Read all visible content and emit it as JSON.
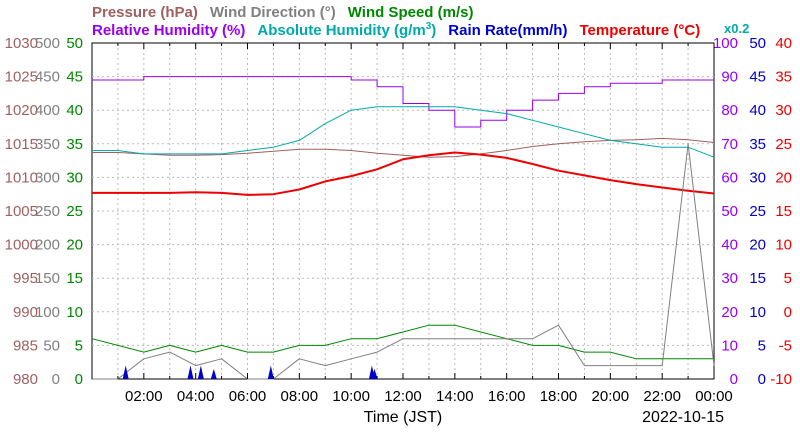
{
  "chart_data": {
    "type": "line",
    "date_label": "2022-10-15",
    "xlabel": "Time (JST)",
    "x_ticks": [
      "02:00",
      "04:00",
      "06:00",
      "08:00",
      "10:00",
      "12:00",
      "14:00",
      "16:00",
      "18:00",
      "20:00",
      "22:00",
      "00:00"
    ],
    "xlim": [
      "00:00",
      "24:00"
    ],
    "x_hours": [
      0,
      1,
      2,
      3,
      4,
      5,
      6,
      7,
      8,
      9,
      10,
      11,
      12,
      13,
      14,
      15,
      16,
      17,
      18,
      19,
      20,
      21,
      22,
      23,
      24
    ],
    "legend_row1": [
      {
        "name": "Pressure (hPa)",
        "color": "#a06060"
      },
      {
        "name": "Wind Direction (°)",
        "color": "#808080"
      },
      {
        "name": "Wind Speed (m/s)",
        "color": "#008800"
      }
    ],
    "legend_row2": [
      {
        "name": "Relative Humidity (%)",
        "color": "#9900ee"
      },
      {
        "name": "Absolute Humidity (g/m",
        "sup": "3",
        "after": ")",
        "color": "#00aaaa"
      },
      {
        "name": "Rain Rate(mm/h)",
        "color": "#0000cc"
      },
      {
        "name": "Temperature (°C)",
        "color": "#ee0000"
      }
    ],
    "scale_note": "x0.2",
    "axes": {
      "pressure": {
        "color": "#a06060",
        "min": 980,
        "max": 1030,
        "ticks": [
          "980",
          "985",
          "990",
          "995",
          "1000",
          "1005",
          "1010",
          "1015",
          "1020",
          "1025",
          "1030"
        ]
      },
      "wind_direction": {
        "color": "#808080",
        "min": 0,
        "max": 500,
        "ticks": [
          "0",
          "50",
          "100",
          "150",
          "200",
          "250",
          "300",
          "350",
          "400",
          "450",
          "500"
        ]
      },
      "wind_speed": {
        "color": "#008800",
        "min": 0,
        "max": 50,
        "ticks": [
          "0",
          "5",
          "10",
          "15",
          "20",
          "25",
          "30",
          "35",
          "40",
          "45",
          "50"
        ]
      },
      "humidity": {
        "color": "#9900ee",
        "min": 0,
        "max": 100,
        "ticks": [
          "0",
          "10",
          "20",
          "30",
          "40",
          "50",
          "60",
          "70",
          "80",
          "90",
          "100"
        ]
      },
      "rain_rate": {
        "color": "#0000cc",
        "min": 0,
        "max": 50,
        "ticks": [
          "0",
          "5",
          "10",
          "15",
          "20",
          "25",
          "30",
          "35",
          "40",
          "45",
          "50"
        ]
      },
      "temperature": {
        "color": "#ee0000",
        "min": -10,
        "max": 40,
        "ticks": [
          "-10",
          "-5",
          "0",
          "5",
          "10",
          "15",
          "20",
          "25",
          "30",
          "35",
          "40"
        ]
      }
    },
    "series": [
      {
        "name": "Pressure (hPa)",
        "axis": "pressure",
        "color": "#a06060",
        "values": [
          1013.7,
          1013.7,
          1013.5,
          1013.3,
          1013.3,
          1013.4,
          1013.6,
          1013.9,
          1014.2,
          1014.2,
          1014.0,
          1013.6,
          1013.3,
          1013.0,
          1013.1,
          1013.5,
          1014.0,
          1014.6,
          1015.0,
          1015.3,
          1015.5,
          1015.6,
          1015.8,
          1015.6,
          1015.2
        ]
      },
      {
        "name": "Relative Humidity (%)",
        "axis": "humidity",
        "color": "#9900ee",
        "values": [
          89,
          89,
          90,
          90,
          90,
          90,
          90,
          90,
          90,
          90,
          89,
          87,
          82,
          80,
          75,
          77,
          80,
          83,
          85,
          87,
          88,
          88,
          89,
          89,
          89
        ]
      },
      {
        "name": "Absolute Humidity (g/m3)",
        "axis": "humidity",
        "color": "#00aaaa",
        "values": [
          68,
          68,
          67,
          67,
          67,
          67,
          68,
          69,
          71,
          76,
          80,
          81,
          81,
          81,
          81,
          80,
          79,
          77,
          75,
          73,
          71,
          70,
          69,
          69,
          66
        ]
      },
      {
        "name": "Temperature (°C)",
        "axis": "temperature",
        "color": "#ee0000",
        "values": [
          17.7,
          17.7,
          17.7,
          17.7,
          17.8,
          17.7,
          17.4,
          17.5,
          18.2,
          19.4,
          20.2,
          21.2,
          22.7,
          23.3,
          23.7,
          23.4,
          22.9,
          22.0,
          21.0,
          20.3,
          19.6,
          19.0,
          18.5,
          18.0,
          17.6
        ]
      },
      {
        "name": "Wind Speed (m/s)",
        "axis": "wind_speed",
        "color": "#008800",
        "values": [
          6,
          5,
          4,
          5,
          4,
          5,
          4,
          4,
          5,
          5,
          6,
          6,
          7,
          8,
          8,
          7,
          6,
          5,
          5,
          4,
          4,
          3,
          3,
          3,
          3
        ]
      },
      {
        "name": "Wind Direction (°)",
        "axis": "wind_direction",
        "color": "#808080",
        "values": [
          0,
          0,
          30,
          40,
          20,
          30,
          0,
          0,
          30,
          20,
          30,
          40,
          60,
          60,
          60,
          60,
          60,
          60,
          80,
          20,
          20,
          20,
          20,
          350,
          20
        ]
      },
      {
        "name": "Rain Rate(mm/h)",
        "axis": "rain_rate",
        "color": "#0000cc",
        "events": [
          [
            1.3,
            2
          ],
          [
            3.8,
            2
          ],
          [
            4.2,
            2
          ],
          [
            4.7,
            1.5
          ],
          [
            6.9,
            2
          ],
          [
            10.8,
            2
          ],
          [
            10.9,
            1.5
          ]
        ]
      }
    ]
  }
}
